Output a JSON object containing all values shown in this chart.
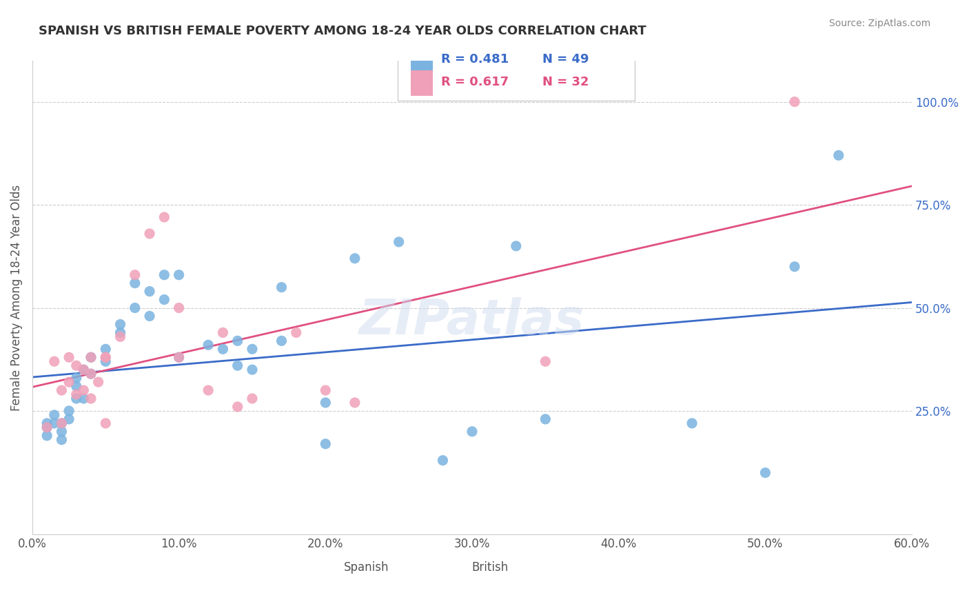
{
  "title": "SPANISH VS BRITISH FEMALE POVERTY AMONG 18-24 YEAR OLDS CORRELATION CHART",
  "source": "Source: ZipAtlas.com",
  "xlabel_bottom": "",
  "ylabel": "Female Poverty Among 18-24 Year Olds",
  "x_tick_labels": [
    "0.0%",
    "10.0%",
    "20.0%",
    "30.0%",
    "40.0%",
    "50.0%",
    "60.0%"
  ],
  "x_tick_values": [
    0.0,
    0.1,
    0.2,
    0.3,
    0.4,
    0.5,
    0.6
  ],
  "y_tick_labels": [
    "25.0%",
    "50.0%",
    "75.0%",
    "100.0%"
  ],
  "y_tick_values": [
    0.25,
    0.5,
    0.75,
    1.0
  ],
  "xlim": [
    0.0,
    0.6
  ],
  "ylim": [
    -0.05,
    1.1
  ],
  "spanish_color": "#7ab3e0",
  "british_color": "#f0a0b8",
  "trend_blue": "#3a6bc8",
  "trend_pink": "#e05080",
  "spanish_R": 0.481,
  "spanish_N": 49,
  "british_R": 0.617,
  "british_N": 32,
  "watermark": "ZIPatlas",
  "background_color": "#ffffff",
  "spanish_x": [
    0.01,
    0.01,
    0.01,
    0.015,
    0.015,
    0.02,
    0.02,
    0.02,
    0.025,
    0.025,
    0.03,
    0.03,
    0.03,
    0.035,
    0.035,
    0.04,
    0.04,
    0.05,
    0.05,
    0.06,
    0.06,
    0.07,
    0.07,
    0.08,
    0.08,
    0.09,
    0.09,
    0.1,
    0.1,
    0.12,
    0.13,
    0.14,
    0.14,
    0.15,
    0.15,
    0.17,
    0.17,
    0.2,
    0.2,
    0.22,
    0.25,
    0.28,
    0.3,
    0.33,
    0.35,
    0.45,
    0.5,
    0.52,
    0.55
  ],
  "spanish_y": [
    0.22,
    0.21,
    0.19,
    0.24,
    0.22,
    0.22,
    0.2,
    0.18,
    0.25,
    0.23,
    0.33,
    0.31,
    0.28,
    0.35,
    0.28,
    0.38,
    0.34,
    0.4,
    0.37,
    0.46,
    0.44,
    0.56,
    0.5,
    0.54,
    0.48,
    0.58,
    0.52,
    0.58,
    0.38,
    0.41,
    0.4,
    0.42,
    0.36,
    0.4,
    0.35,
    0.55,
    0.42,
    0.27,
    0.17,
    0.62,
    0.66,
    0.13,
    0.2,
    0.65,
    0.23,
    0.22,
    0.1,
    0.6,
    0.87
  ],
  "british_x": [
    0.01,
    0.015,
    0.02,
    0.02,
    0.025,
    0.025,
    0.03,
    0.03,
    0.035,
    0.035,
    0.04,
    0.04,
    0.04,
    0.045,
    0.05,
    0.05,
    0.05,
    0.06,
    0.07,
    0.08,
    0.09,
    0.1,
    0.1,
    0.12,
    0.13,
    0.14,
    0.15,
    0.18,
    0.2,
    0.22,
    0.35,
    0.52
  ],
  "british_y": [
    0.21,
    0.37,
    0.3,
    0.22,
    0.38,
    0.32,
    0.36,
    0.29,
    0.35,
    0.3,
    0.38,
    0.34,
    0.28,
    0.32,
    0.38,
    0.38,
    0.22,
    0.43,
    0.58,
    0.68,
    0.72,
    0.5,
    0.38,
    0.3,
    0.44,
    0.26,
    0.28,
    0.44,
    0.3,
    0.27,
    0.37,
    1.0
  ]
}
